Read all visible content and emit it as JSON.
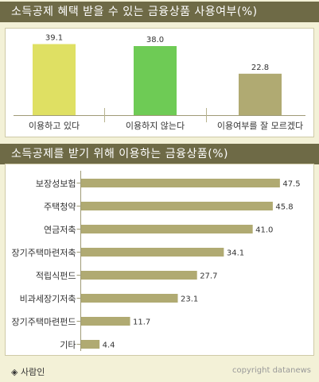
{
  "colors": {
    "header_bg": "#6e6a46",
    "page_bg": "#f3f1d7",
    "bar_khaki": "#b0aa72",
    "bar_yellow": "#dfe063",
    "bar_green": "#6ecb55"
  },
  "source_icon": "diamond-icon",
  "source": "◈ 사람인",
  "copyright": "copyright datanews",
  "chart_data": [
    {
      "type": "bar",
      "title": "소득공제 혜택 받을 수 있는 금융상품 사용여부(%)",
      "categories": [
        "이용하고 있다",
        "이용하지 않는다",
        "이용여부를 잘 모르겠다"
      ],
      "values": [
        39.1,
        38.0,
        22.8
      ],
      "value_labels": [
        "39.1",
        "38.0",
        "22.8"
      ],
      "bar_colors": [
        "#dfe063",
        "#6ecb55",
        "#b0aa72"
      ],
      "ylim": [
        0,
        45
      ],
      "grid": false,
      "xlabel": "",
      "ylabel": ""
    },
    {
      "type": "bar",
      "orientation": "horizontal",
      "title": "소득공제를 받기 위해 이용하는 금융상품(%)",
      "categories": [
        "보장성보험",
        "주택청약",
        "연금저축",
        "장기주택마련저축",
        "적립식펀드",
        "비과세장기저축",
        "장기주택마련펀드",
        "기타"
      ],
      "values": [
        47.5,
        45.8,
        41.0,
        34.1,
        27.7,
        23.1,
        11.7,
        4.4
      ],
      "value_labels": [
        "47.5",
        "45.8",
        "41.0",
        "34.1",
        "27.7",
        "23.1",
        "11.7",
        "4.4"
      ],
      "bar_color": "#b0aa72",
      "xlim": [
        0,
        50
      ],
      "grid": false,
      "xlabel": "",
      "ylabel": ""
    }
  ]
}
